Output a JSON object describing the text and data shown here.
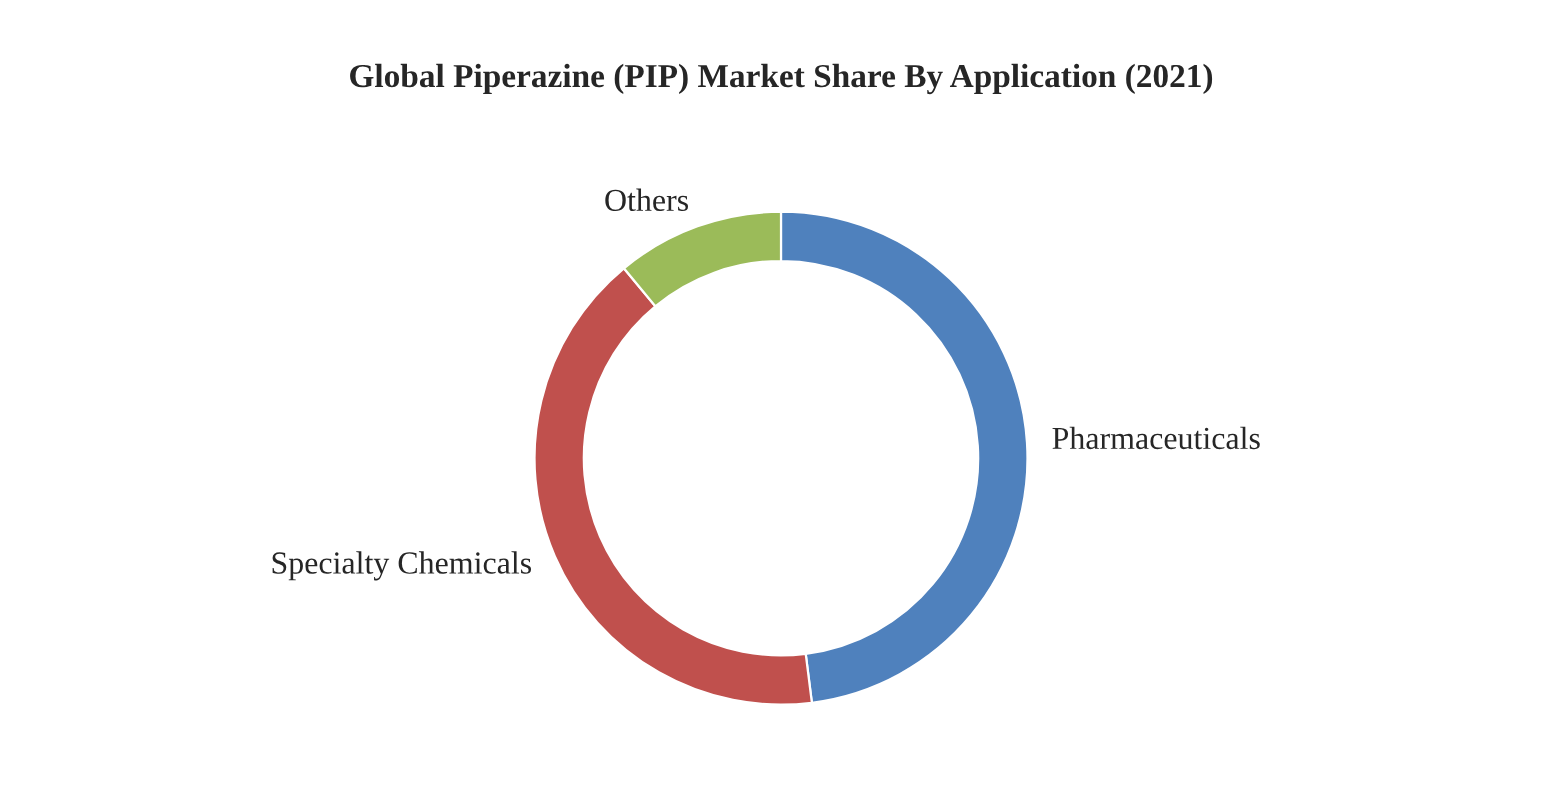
{
  "chart_data": {
    "type": "donut",
    "title": "Global Piperazine (PIP) Market Share By Application (2021)",
    "categories": [
      "Pharmaceuticals",
      "Specialty Chemicals",
      "Others"
    ],
    "values": [
      48,
      41,
      11
    ],
    "colors": [
      "#4f81bd",
      "#c0504d",
      "#9bbb59"
    ]
  }
}
